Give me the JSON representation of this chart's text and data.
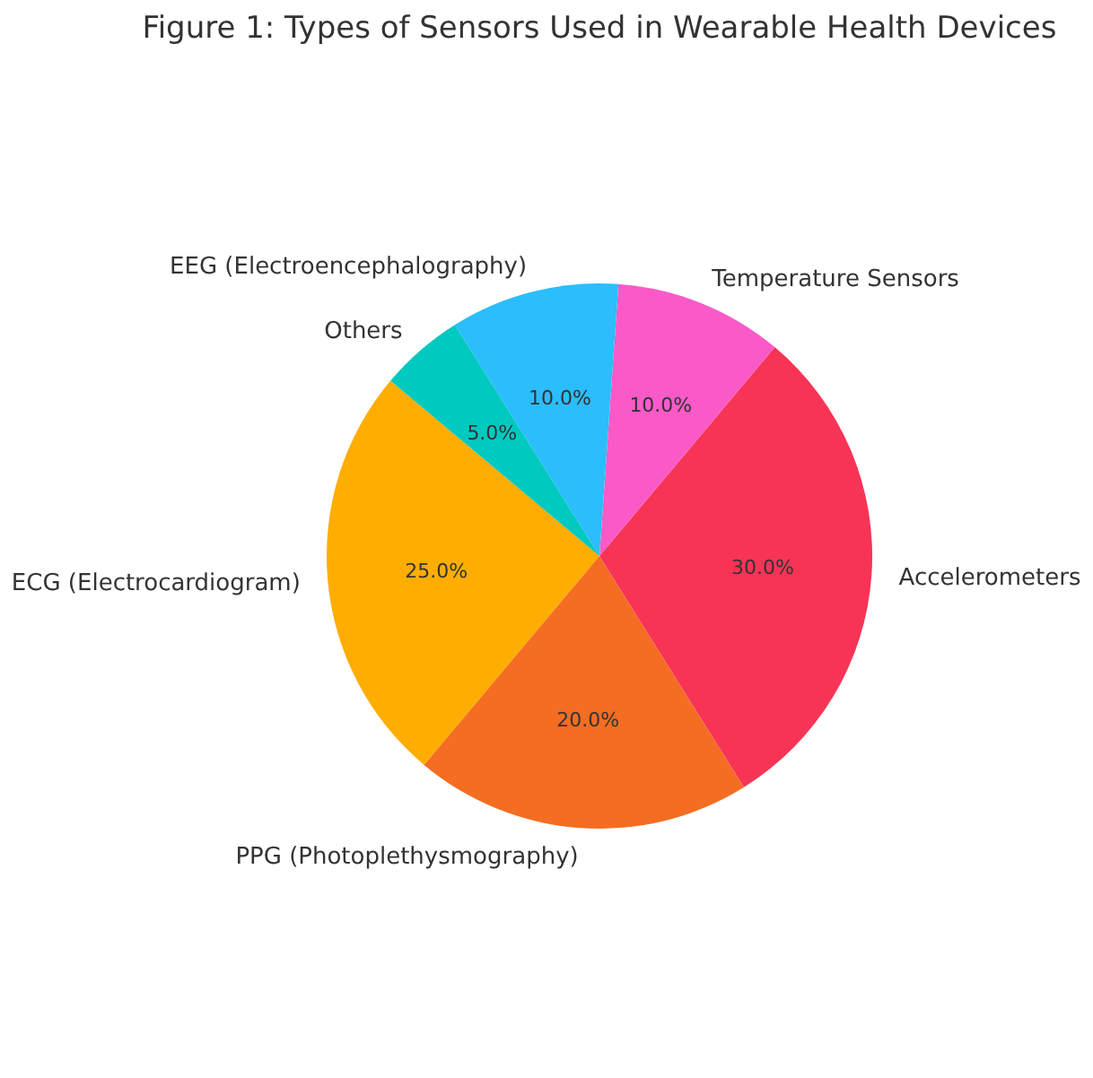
{
  "chart_data": {
    "type": "pie",
    "title": "Figure 1: Types of Sensors Used in Wearable Health Devices",
    "categories": [
      "ECG (Electrocardiogram)",
      "PPG (Photoplethysmography)",
      "Accelerometers",
      "Temperature Sensors",
      "EEG (Electroencephalography)",
      "Others"
    ],
    "values": [
      25,
      20,
      30,
      10,
      10,
      5
    ],
    "colors": [
      "#ffad00",
      "#f46d22",
      "#f73456",
      "#fa5ac8",
      "#2bbdfc",
      "#00c9c0"
    ],
    "value_labels": [
      "25.0%",
      "20.0%",
      "30.0%",
      "10.0%",
      "10.0%",
      "5.0%"
    ]
  }
}
